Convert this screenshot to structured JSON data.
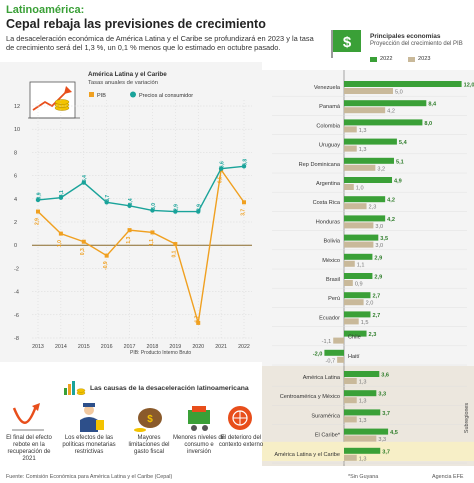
{
  "header": {
    "kicker": "Latinoamérica:",
    "title": "Cepal rebaja las previsiones de crecimiento",
    "lead": "La desaceleración económica de América Latina y el Caribe se profundizará en 2023 y la tasa de crecimiento será del 1,3 %, un 0,1 % menos que lo estimado en octubre pasado."
  },
  "chart_data": [
    {
      "type": "line",
      "title": "América Latina y el Caribe",
      "subtitle": "Tasas anuales de variación",
      "x": [
        "2013",
        "2014",
        "2015",
        "2016",
        "2017",
        "2018",
        "2019",
        "2020",
        "2021",
        "2022"
      ],
      "series": [
        {
          "name": "PIB",
          "color": "#f0a020",
          "values": [
            2.9,
            1.0,
            0.3,
            -0.9,
            1.3,
            1.1,
            0.1,
            -6.7,
            6.5,
            3.7
          ]
        },
        {
          "name": "Precios al consumidor",
          "color": "#1aa39a",
          "values": [
            3.9,
            4.1,
            5.4,
            3.7,
            3.4,
            3.0,
            2.9,
            2.9,
            6.6,
            6.8
          ]
        }
      ],
      "value_labels": {
        "PIB": [
          "2,9",
          "1,0",
          "0,3",
          "-0,9",
          "1,3",
          "1,1",
          "0,1",
          "-6,7",
          "6,5",
          "3,7"
        ],
        "Precios al consumidor": [
          "3,9",
          "4,1",
          "5,4",
          "3,7",
          "3,4",
          "3,0",
          "2,9",
          "2,9",
          "6,6",
          "6,8"
        ]
      },
      "ylim": [
        -8,
        12
      ],
      "yticks": [
        "12",
        "10",
        "8",
        "6",
        "4",
        "2",
        "0",
        "-2",
        "-4",
        "-6",
        "-8"
      ],
      "note": "PIB: Producto Interno Bruto"
    },
    {
      "type": "bar",
      "title": "Principales economías",
      "subtitle": "Proyección del crecimiento del PIB",
      "series": [
        {
          "name": "2022",
          "color": "#3aa037"
        },
        {
          "name": "2023",
          "color": "#c9b99a"
        }
      ],
      "categories": [
        "Venezuela",
        "Panamá",
        "Colombia",
        "Uruguay",
        "Rep Dominicana",
        "Argentina",
        "Costa Rica",
        "Honduras",
        "Bolivia",
        "México",
        "Brasil",
        "Perú",
        "Ecuador",
        "Chile",
        "Haití"
      ],
      "values_2022": [
        12.0,
        8.4,
        8.0,
        5.4,
        5.1,
        4.9,
        4.2,
        4.2,
        3.5,
        2.9,
        2.9,
        2.7,
        2.7,
        2.3,
        -2.0
      ],
      "values_2023": [
        5.0,
        4.2,
        1.3,
        1.3,
        3.2,
        1.0,
        2.3,
        3.0,
        3.0,
        1.1,
        0.9,
        2.0,
        1.5,
        -1.1,
        -0.7
      ],
      "labels_2022": [
        "12,0",
        "8,4",
        "8,0",
        "5,4",
        "5,1",
        "4,9",
        "4,2",
        "4,2",
        "3,5",
        "2,9",
        "2,9",
        "2,7",
        "2,7",
        "2,3",
        "-2,0"
      ],
      "labels_2023": [
        "5,0",
        "4,2",
        "1,3",
        "1,3",
        "3,2",
        "1,0",
        "2,3",
        "3,0",
        "3,0",
        "1,1",
        "0,9",
        "2,0",
        "1,5",
        "-1,1",
        "-0,7"
      ],
      "subregions": {
        "title": "Subregiones",
        "categories": [
          "América Latina",
          "Centroamérica y México",
          "Suramérica",
          "El Caribe*",
          "América Latina y el Caribe"
        ],
        "values_2022": [
          3.6,
          3.3,
          3.7,
          4.5,
          3.7
        ],
        "values_2023": [
          1.3,
          1.3,
          1.3,
          3.3,
          1.3
        ],
        "labels_2022": [
          "3,6",
          "3,3",
          "3,7",
          "4,5",
          "3,7"
        ],
        "labels_2023": [
          "1,3",
          "1,3",
          "1,3",
          "3,3",
          "1,3"
        ]
      }
    }
  ],
  "causes": {
    "title": "Las causas de la desaceleración latinoamericana",
    "items": [
      {
        "label": "El final del efecto rebote en la recuperación de 2021",
        "icon": "rebound-arrow-icon"
      },
      {
        "label": "Los efectos de las políticas monetarias restrictivas",
        "icon": "policy-officer-icon"
      },
      {
        "label": "Mayores limitaciones del gasto fiscal",
        "icon": "spending-icon"
      },
      {
        "label": "Menores niveles de consumo e inversión",
        "icon": "investment-icon"
      },
      {
        "label": "El deterioro del contexto externo",
        "icon": "warning-globe-icon"
      }
    ]
  },
  "footer": {
    "source": "Fuente: Comisión Económica para América Latina y el Caribe (Cepal)",
    "note": "*Sin Guyana",
    "agency": "Agencia EFE"
  }
}
